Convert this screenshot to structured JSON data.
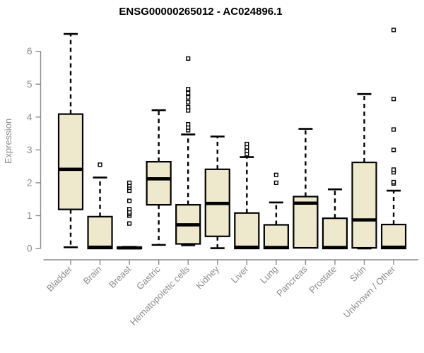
{
  "chart_data": {
    "type": "boxplot",
    "title": "ENSG00000265012 - AC024896.1",
    "ylabel": "Expression",
    "xlabel": "",
    "ylim": [
      0,
      6.8
    ],
    "yticks": [
      0,
      1,
      2,
      3,
      4,
      5,
      6
    ],
    "grid": false,
    "legend": "none",
    "categories": [
      "Bladder",
      "Brain",
      "Breast",
      "Gastric",
      "Hematopoietic cells",
      "Kidney",
      "Liver",
      "Lung",
      "Pancreas",
      "Prostate",
      "Skin",
      "Unknown / Other"
    ],
    "series": [
      {
        "name": "Bladder",
        "low": 0.04,
        "q1": 1.19,
        "median": 2.41,
        "q3": 4.09,
        "high": 6.53,
        "outliers": []
      },
      {
        "name": "Brain",
        "low": 0.0,
        "q1": 0.0,
        "median": 0.04,
        "q3": 0.97,
        "high": 2.16,
        "outliers": [
          2.55
        ]
      },
      {
        "name": "Breast",
        "low": 0.0,
        "q1": 0.0,
        "median": 0.02,
        "q3": 0.04,
        "high": 0.05,
        "outliers": [
          0.76,
          1.0,
          1.05,
          1.1,
          1.2,
          1.45,
          1.76,
          1.85,
          1.92,
          2.0
        ]
      },
      {
        "name": "Gastric",
        "low": 0.11,
        "q1": 1.33,
        "median": 2.12,
        "q3": 2.64,
        "high": 4.21,
        "outliers": []
      },
      {
        "name": "Hematopoietic cells",
        "low": 0.1,
        "q1": 0.14,
        "median": 0.72,
        "q3": 1.33,
        "high": 3.47,
        "outliers": [
          3.6,
          3.68,
          3.78,
          4.2,
          4.3,
          4.45,
          4.6,
          4.73,
          4.85,
          5.78
        ]
      },
      {
        "name": "Kidney",
        "low": 0.01,
        "q1": 0.37,
        "median": 1.37,
        "q3": 2.41,
        "high": 3.41,
        "outliers": []
      },
      {
        "name": "Liver",
        "low": 0.0,
        "q1": 0.0,
        "median": 0.04,
        "q3": 1.08,
        "high": 2.78,
        "outliers": [
          2.87,
          2.97,
          3.08,
          3.18
        ]
      },
      {
        "name": "Lung",
        "low": 0.0,
        "q1": 0.0,
        "median": 0.03,
        "q3": 0.72,
        "high": 1.4,
        "outliers": [
          2.0,
          2.24
        ]
      },
      {
        "name": "Pancreas",
        "low": 0.02,
        "q1": 0.02,
        "median": 1.38,
        "q3": 1.58,
        "high": 3.64,
        "outliers": []
      },
      {
        "name": "Prostate",
        "low": 0.0,
        "q1": 0.0,
        "median": 0.03,
        "q3": 0.92,
        "high": 1.8,
        "outliers": []
      },
      {
        "name": "Skin",
        "low": 0.0,
        "q1": 0.02,
        "median": 0.87,
        "q3": 2.62,
        "high": 4.7,
        "outliers": []
      },
      {
        "name": "Unknown / Other",
        "low": 0.0,
        "q1": 0.0,
        "median": 0.04,
        "q3": 0.73,
        "high": 1.76,
        "outliers": [
          1.98,
          2.02,
          2.32,
          2.4,
          3.0,
          3.62,
          4.55,
          6.65
        ]
      }
    ],
    "colors": {
      "box_fill": "#EEE8CD",
      "box_border": "#000000",
      "median": "#000000",
      "whisker": "#000000",
      "outlier_stroke": "#000000",
      "outlier_fill": "#ffffff",
      "axis": "#8b8b8b",
      "tick_label": "#8b8b8b",
      "title": "#000000"
    }
  }
}
